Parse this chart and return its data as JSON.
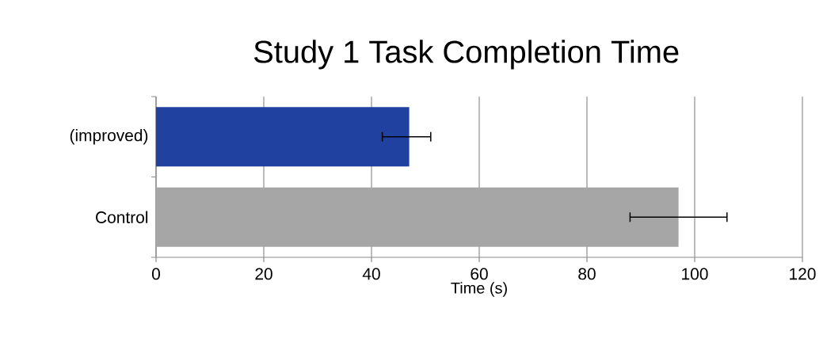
{
  "chart_data": {
    "type": "bar",
    "orientation": "horizontal",
    "title": "Study 1 Task Completion Time",
    "xlabel": "Time (s)",
    "categories": [
      "(improved)",
      "Control"
    ],
    "values": [
      47,
      97
    ],
    "colors": [
      "#2141a1",
      "#a6a6a6"
    ],
    "errors": [
      [
        42,
        51
      ],
      [
        88,
        106
      ]
    ],
    "xlim": [
      0,
      120
    ],
    "xticks": [
      0,
      20,
      40,
      60,
      80,
      100,
      120
    ],
    "grid": "x"
  }
}
